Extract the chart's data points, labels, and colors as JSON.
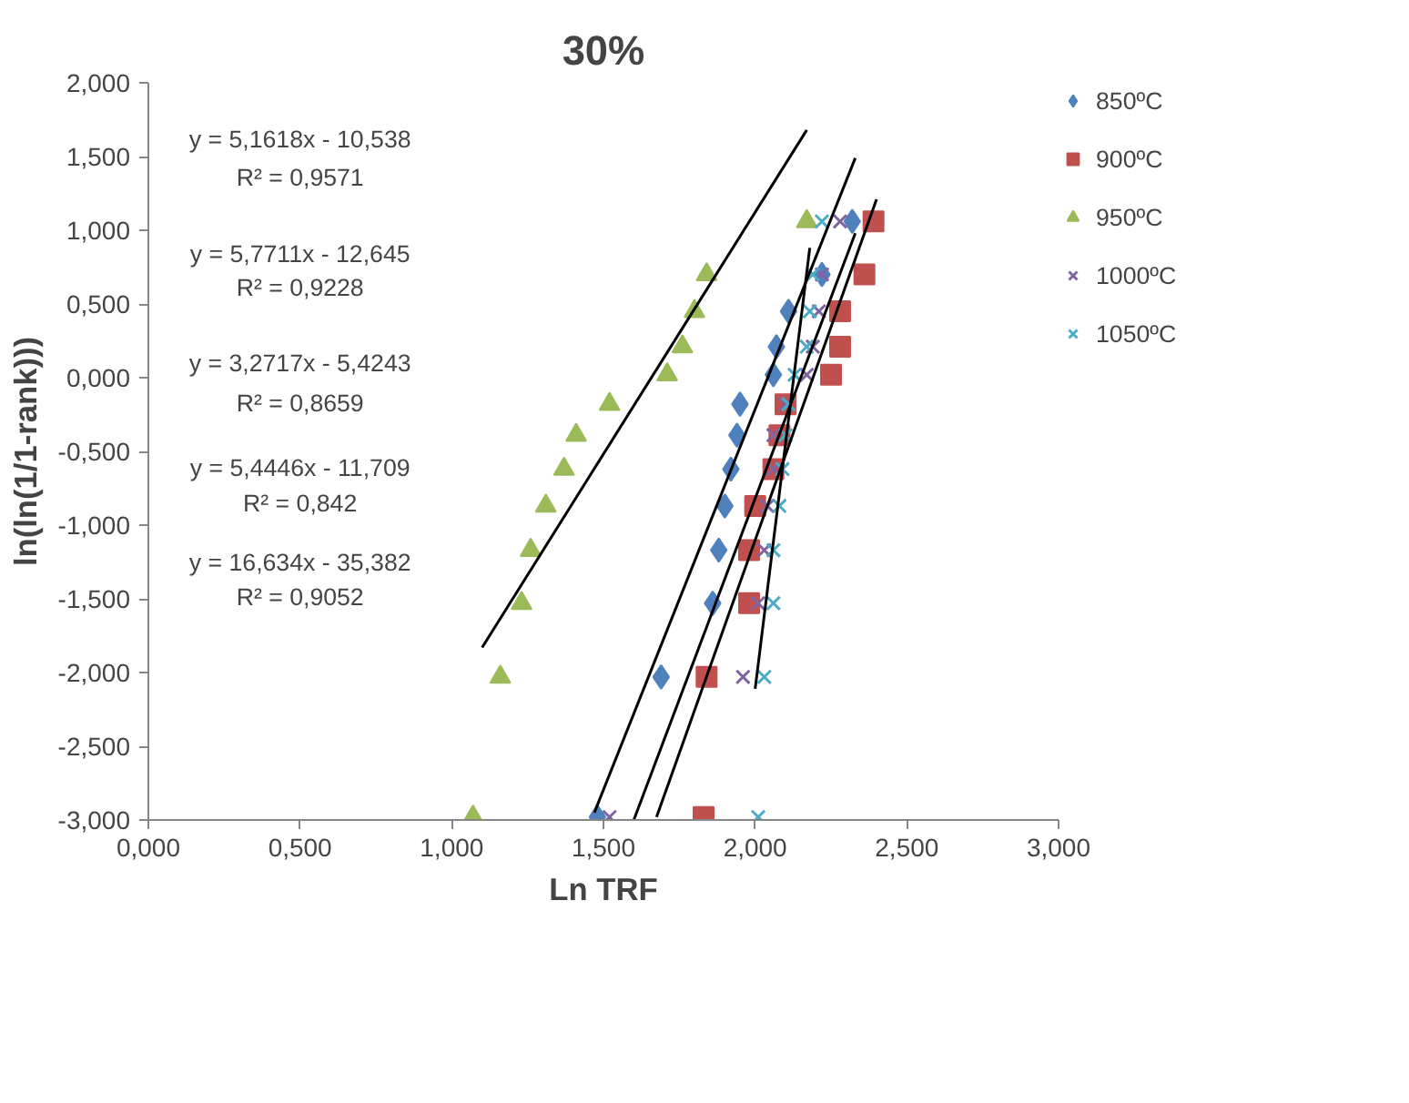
{
  "chart_data": {
    "type": "scatter",
    "title": "30%",
    "xlabel": "Ln TRF",
    "ylabel": "ln(ln(1/1-rank)))",
    "xlim": [
      0,
      3
    ],
    "ylim": [
      -3,
      2
    ],
    "xticks": [
      {
        "value": 0,
        "label": "0,000"
      },
      {
        "value": 0.5,
        "label": "0,500"
      },
      {
        "value": 1,
        "label": "1,000"
      },
      {
        "value": 1.5,
        "label": "1,500"
      },
      {
        "value": 2,
        "label": "2,000"
      },
      {
        "value": 2.5,
        "label": "2,500"
      },
      {
        "value": 3,
        "label": "3,000"
      }
    ],
    "yticks": [
      {
        "value": 2,
        "label": "2,000"
      },
      {
        "value": 1.5,
        "label": "1,500"
      },
      {
        "value": 1,
        "label": "1,000"
      },
      {
        "value": 0.5,
        "label": "0,500"
      },
      {
        "value": 0,
        "label": "0,000"
      },
      {
        "value": -0.5,
        "label": "-0,500"
      },
      {
        "value": -1,
        "label": "-1,000"
      },
      {
        "value": -1.5,
        "label": "-1,500"
      },
      {
        "value": -2,
        "label": "-2,000"
      },
      {
        "value": -2.5,
        "label": "-2,500"
      },
      {
        "value": -3,
        "label": "-3,000"
      }
    ],
    "grid": false,
    "legend": "right",
    "series": [
      {
        "name": "850ºC",
        "color": "#4f81bd",
        "marker": "diamond",
        "x": [
          2.32,
          2.22,
          2.11,
          2.07,
          2.06,
          1.95,
          1.94,
          1.92,
          1.9,
          1.88,
          1.86,
          1.69,
          1.48
        ],
        "values": [
          1.06,
          0.7,
          0.45,
          0.21,
          0.02,
          -0.18,
          -0.39,
          -0.62,
          -0.87,
          -1.17,
          -1.53,
          -2.03,
          -2.98
        ]
      },
      {
        "name": "900ºC",
        "color": "#c0504d",
        "marker": "square",
        "x": [
          2.39,
          2.36,
          2.28,
          2.28,
          2.25,
          2.1,
          2.08,
          2.06,
          2.0,
          1.98,
          1.98,
          1.84,
          1.83
        ],
        "values": [
          1.06,
          0.7,
          0.45,
          0.21,
          0.02,
          -0.18,
          -0.39,
          -0.62,
          -0.87,
          -1.17,
          -1.53,
          -2.03,
          -2.98
        ]
      },
      {
        "name": "950ºC",
        "color": "#9bbb59",
        "marker": "triangle",
        "x": [
          2.17,
          1.84,
          1.8,
          1.76,
          1.71,
          1.52,
          1.41,
          1.37,
          1.31,
          1.26,
          1.23,
          1.16,
          1.07
        ],
        "values": [
          1.06,
          0.7,
          0.45,
          0.21,
          0.02,
          -0.18,
          -0.39,
          -0.62,
          -0.87,
          -1.17,
          -1.53,
          -2.03,
          -2.98
        ]
      },
      {
        "name": "1000ºC",
        "color": "#8064a2",
        "marker": "cross",
        "x": [
          2.28,
          2.22,
          2.21,
          2.19,
          2.17,
          2.1,
          2.06,
          2.06,
          2.04,
          2.03,
          2.01,
          1.96,
          1.52
        ],
        "values": [
          1.06,
          0.7,
          0.45,
          0.21,
          0.02,
          -0.18,
          -0.39,
          -0.62,
          -0.87,
          -1.17,
          -1.53,
          -2.03,
          -2.98
        ]
      },
      {
        "name": "1050ºC",
        "color": "#4bacc6",
        "marker": "cross",
        "x": [
          2.22,
          2.19,
          2.18,
          2.17,
          2.13,
          2.11,
          2.1,
          2.09,
          2.08,
          2.06,
          2.06,
          2.03,
          2.01
        ],
        "values": [
          1.06,
          0.7,
          0.45,
          0.21,
          0.02,
          -0.18,
          -0.39,
          -0.62,
          -0.87,
          -1.17,
          -1.53,
          -2.03,
          -2.98
        ]
      },
      {
        "type": "line",
        "color": "#000000",
        "x": [
          1.47,
          2.33
        ],
        "values": [
          -2.95,
          1.49
        ]
      },
      {
        "type": "line",
        "color": "#000000",
        "x": [
          1.675,
          2.4
        ],
        "values": [
          -2.98,
          1.21
        ]
      },
      {
        "type": "line",
        "color": "#000000",
        "x": [
          1.1,
          2.17
        ],
        "values": [
          -1.83,
          1.68
        ]
      },
      {
        "type": "line",
        "color": "#000000",
        "x": [
          1.6,
          2.33
        ],
        "values": [
          -3.0,
          0.98
        ]
      },
      {
        "type": "line",
        "color": "#000000",
        "x": [
          2.0,
          2.18
        ],
        "values": [
          -2.11,
          0.88
        ]
      }
    ],
    "annotations": [
      "y = 5,1618x - 10,538",
      "R² = 0,9571",
      "y = 5,7711x - 12,645",
      "R² = 0,9228",
      "y = 3,2717x - 5,4243",
      "R² = 0,8659",
      "y = 5,4446x - 11,709",
      "R² = 0,842",
      "y = 16,634x - 35,382",
      "R² = 0,9052"
    ]
  }
}
